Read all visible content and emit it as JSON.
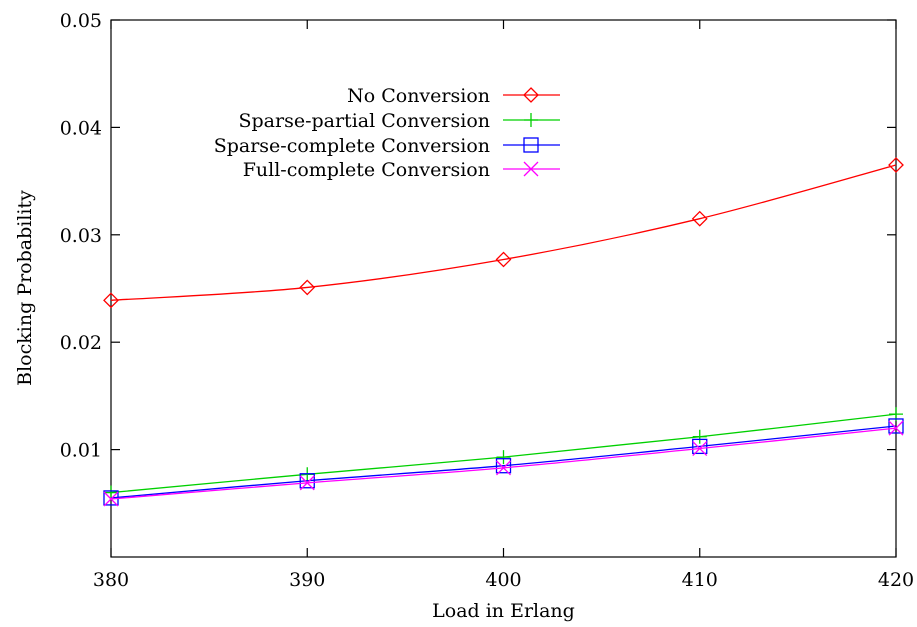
{
  "chart_data": {
    "type": "line",
    "xlabel": "Load in Erlang",
    "ylabel": "Blocking Probability",
    "x": [
      380,
      390,
      400,
      410,
      420
    ],
    "xlim": [
      380,
      420
    ],
    "ylim": [
      0,
      0.05
    ],
    "x_ticks": [
      "380",
      "390",
      "400",
      "410",
      "420"
    ],
    "y_ticks": [
      {
        "value": 0.01,
        "label": "0.01"
      },
      {
        "value": 0.02,
        "label": "0.02"
      },
      {
        "value": 0.03,
        "label": "0.03"
      },
      {
        "value": 0.04,
        "label": "0.04"
      },
      {
        "value": 0.05,
        "label": "0.05"
      }
    ],
    "grid": false,
    "legend_position": "top-center",
    "series": [
      {
        "name": "No Conversion",
        "color": "#ff0000",
        "marker": "diamond",
        "values": [
          0.0239,
          0.0251,
          0.0277,
          0.0315,
          0.0365
        ]
      },
      {
        "name": "Sparse-partial Conversion",
        "color": "#00d000",
        "marker": "plus",
        "values": [
          0.006,
          0.0077,
          0.0093,
          0.0112,
          0.0133
        ]
      },
      {
        "name": "Sparse-complete Conversion",
        "color": "#0000ff",
        "marker": "square",
        "values": [
          0.0055,
          0.0071,
          0.0085,
          0.0103,
          0.0122
        ]
      },
      {
        "name": "Full-complete Conversion",
        "color": "#ff00ff",
        "marker": "cross",
        "values": [
          0.0054,
          0.0069,
          0.0083,
          0.0101,
          0.012
        ]
      }
    ]
  }
}
